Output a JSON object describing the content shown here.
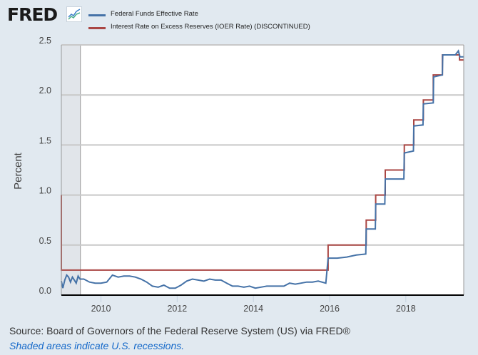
{
  "header": {
    "logo_text": "FRED",
    "logo_icon": "line-chart-icon"
  },
  "chart_data": {
    "type": "line",
    "title": "",
    "xlabel": "",
    "ylabel": "Percent",
    "xlim": [
      2008.96,
      2019.52
    ],
    "ylim": [
      0,
      2.5
    ],
    "x_ticks": [
      2010,
      2012,
      2014,
      2016,
      2018
    ],
    "x_tick_labels": [
      "2010",
      "2012",
      "2014",
      "2016",
      "2018"
    ],
    "y_ticks": [
      0,
      0.5,
      1.0,
      1.5,
      2.0,
      2.5
    ],
    "y_tick_labels": [
      "0.0",
      "0.5",
      "1.0",
      "1.5",
      "2.0",
      "2.5"
    ],
    "grid": true,
    "legend_placement": "top",
    "recessions": [
      {
        "start": 2008.96,
        "end": 2009.46
      }
    ],
    "series": [
      {
        "name": "Federal Funds Effective Rate",
        "color": "#4572a7",
        "points": [
          [
            2008.96,
            0.14
          ],
          [
            2009.0,
            0.07
          ],
          [
            2009.05,
            0.15
          ],
          [
            2009.1,
            0.2
          ],
          [
            2009.15,
            0.18
          ],
          [
            2009.2,
            0.13
          ],
          [
            2009.25,
            0.18
          ],
          [
            2009.3,
            0.15
          ],
          [
            2009.35,
            0.12
          ],
          [
            2009.4,
            0.19
          ],
          [
            2009.45,
            0.16
          ],
          [
            2009.55,
            0.16
          ],
          [
            2009.7,
            0.13
          ],
          [
            2009.85,
            0.12
          ],
          [
            2010.0,
            0.12
          ],
          [
            2010.15,
            0.13
          ],
          [
            2010.3,
            0.2
          ],
          [
            2010.45,
            0.18
          ],
          [
            2010.6,
            0.19
          ],
          [
            2010.75,
            0.19
          ],
          [
            2010.9,
            0.18
          ],
          [
            2011.05,
            0.16
          ],
          [
            2011.2,
            0.13
          ],
          [
            2011.35,
            0.09
          ],
          [
            2011.5,
            0.08
          ],
          [
            2011.65,
            0.1
          ],
          [
            2011.8,
            0.07
          ],
          [
            2011.95,
            0.07
          ],
          [
            2012.1,
            0.1
          ],
          [
            2012.25,
            0.14
          ],
          [
            2012.4,
            0.16
          ],
          [
            2012.55,
            0.15
          ],
          [
            2012.7,
            0.14
          ],
          [
            2012.85,
            0.16
          ],
          [
            2013.0,
            0.15
          ],
          [
            2013.15,
            0.15
          ],
          [
            2013.3,
            0.12
          ],
          [
            2013.45,
            0.09
          ],
          [
            2013.6,
            0.09
          ],
          [
            2013.75,
            0.08
          ],
          [
            2013.9,
            0.09
          ],
          [
            2014.05,
            0.07
          ],
          [
            2014.2,
            0.08
          ],
          [
            2014.35,
            0.09
          ],
          [
            2014.5,
            0.09
          ],
          [
            2014.65,
            0.09
          ],
          [
            2014.8,
            0.09
          ],
          [
            2014.95,
            0.12
          ],
          [
            2015.1,
            0.11
          ],
          [
            2015.25,
            0.12
          ],
          [
            2015.4,
            0.13
          ],
          [
            2015.55,
            0.13
          ],
          [
            2015.7,
            0.14
          ],
          [
            2015.9,
            0.12
          ],
          [
            2015.96,
            0.37
          ],
          [
            2016.2,
            0.37
          ],
          [
            2016.45,
            0.38
          ],
          [
            2016.7,
            0.4
          ],
          [
            2016.95,
            0.41
          ],
          [
            2016.96,
            0.66
          ],
          [
            2017.2,
            0.66
          ],
          [
            2017.21,
            0.91
          ],
          [
            2017.45,
            0.91
          ],
          [
            2017.46,
            1.16
          ],
          [
            2017.95,
            1.16
          ],
          [
            2017.96,
            1.42
          ],
          [
            2018.2,
            1.44
          ],
          [
            2018.21,
            1.69
          ],
          [
            2018.45,
            1.7
          ],
          [
            2018.46,
            1.91
          ],
          [
            2018.72,
            1.92
          ],
          [
            2018.73,
            2.18
          ],
          [
            2018.96,
            2.2
          ],
          [
            2018.97,
            2.4
          ],
          [
            2019.3,
            2.4
          ],
          [
            2019.38,
            2.44
          ],
          [
            2019.42,
            2.38
          ],
          [
            2019.52,
            2.38
          ]
        ]
      },
      {
        "name": "Interest Rate on Excess Reserves (IOER Rate) (DISCONTINUED)",
        "color": "#aa4643",
        "steps": [
          [
            2008.96,
            1.0
          ],
          [
            2008.96,
            0.25
          ],
          [
            2015.96,
            0.25
          ],
          [
            2015.96,
            0.5
          ],
          [
            2016.96,
            0.5
          ],
          [
            2016.96,
            0.75
          ],
          [
            2017.21,
            0.75
          ],
          [
            2017.21,
            1.0
          ],
          [
            2017.46,
            1.0
          ],
          [
            2017.46,
            1.25
          ],
          [
            2017.96,
            1.25
          ],
          [
            2017.96,
            1.5
          ],
          [
            2018.21,
            1.5
          ],
          [
            2018.21,
            1.75
          ],
          [
            2018.46,
            1.75
          ],
          [
            2018.46,
            1.95
          ],
          [
            2018.72,
            1.95
          ],
          [
            2018.72,
            2.2
          ],
          [
            2018.96,
            2.2
          ],
          [
            2018.96,
            2.4
          ],
          [
            2019.41,
            2.4
          ],
          [
            2019.41,
            2.35
          ],
          [
            2019.52,
            2.35
          ]
        ]
      }
    ]
  },
  "footer": {
    "source": "Source: Board of Governors of the Federal Reserve System (US) via FRED®",
    "note": "Shaded areas indicate U.S. recessions."
  }
}
